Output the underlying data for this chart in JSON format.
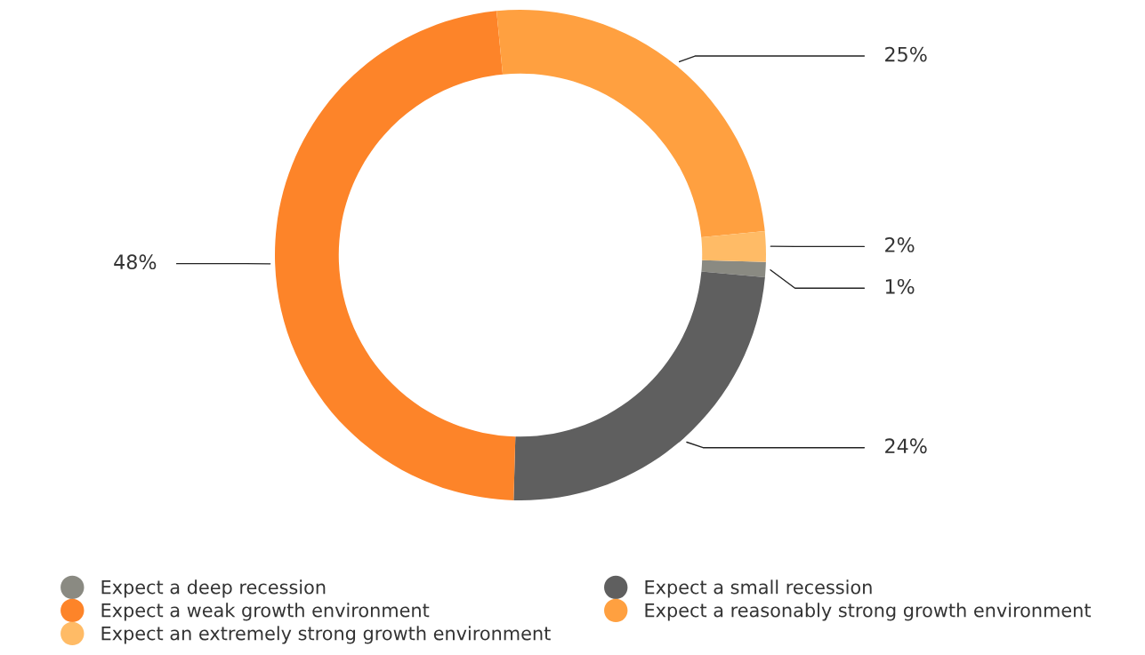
{
  "chart_data": {
    "type": "donut",
    "categories": [
      "Expect a deep recession",
      "Expect a small recession",
      "Expect a weak growth environment",
      "Expect a reasonably strong growth environment",
      "Expect an extremely strong growth environment"
    ],
    "values": [
      1,
      24,
      48,
      25,
      2
    ],
    "colors": [
      "#8a8a82",
      "#5f5f5f",
      "#fd8429",
      "#ffa040",
      "#ffbb66"
    ],
    "value_labels": [
      "1%",
      "24%",
      "48%",
      "25%",
      "2%"
    ],
    "legend": "bottom"
  }
}
